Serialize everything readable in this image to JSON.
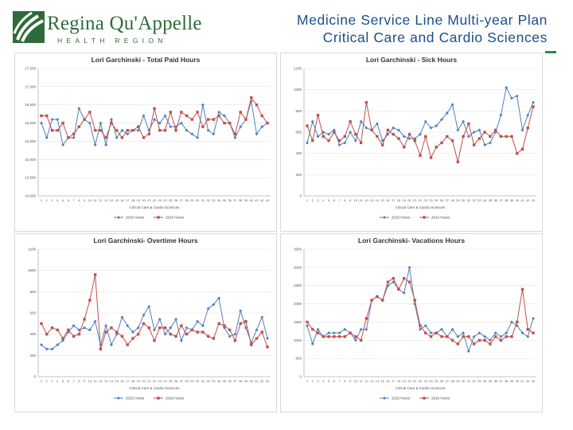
{
  "header": {
    "logo_name": "Regina Qu'Appelle",
    "logo_subtitle": "HEALTH REGION",
    "title_line1": "Medicine Service Line Multi-year Plan",
    "title_line2": "Critical Care and Cardio Sciences",
    "colors": {
      "brand_green": "#2f6b3a",
      "title_blue": "#1a4e8c"
    }
  },
  "chart_data": [
    {
      "type": "line",
      "title": "Lori Garchinski - Total Paid Hours",
      "xlabel": "Critical Care & Cardio Sciences",
      "ylabel": "",
      "ylim": [
        14000,
        17500
      ],
      "yticks": [
        "14,000",
        "14,500",
        "15,000",
        "15,500",
        "16,000",
        "16,500",
        "17,000",
        "17,500"
      ],
      "categories": [
        "1",
        "2",
        "3",
        "4",
        "5",
        "6",
        "7",
        "8",
        "9",
        "10",
        "11",
        "12",
        "13",
        "14",
        "15",
        "16",
        "17",
        "18",
        "19",
        "20",
        "21",
        "22",
        "23",
        "24",
        "25",
        "26",
        "27",
        "28",
        "29",
        "30",
        "31",
        "32",
        "33",
        "34",
        "35",
        "36",
        "37",
        "38",
        "39",
        "40",
        "41",
        "42",
        "43"
      ],
      "series": [
        {
          "name": "2015 Hours",
          "color": "#4f81bd",
          "values": [
            16000,
            15600,
            16100,
            16100,
            15400,
            15600,
            15600,
            16400,
            16100,
            16000,
            15400,
            16000,
            15400,
            16100,
            15600,
            15800,
            15700,
            15800,
            15800,
            16200,
            15800,
            16100,
            16000,
            16200,
            15900,
            15900,
            16000,
            15800,
            15700,
            15600,
            16500,
            15800,
            15700,
            16300,
            16200,
            16000,
            15600,
            15900,
            16100,
            16600,
            15700,
            15900,
            16000
          ]
        },
        {
          "name": "2016 Hours",
          "color": "#c0504d",
          "values": [
            16200,
            16200,
            15800,
            15800,
            16000,
            15600,
            15700,
            15900,
            16100,
            16300,
            15800,
            15800,
            15600,
            16000,
            15800,
            15600,
            15800,
            15800,
            15900,
            15600,
            15700,
            16400,
            15800,
            15800,
            16300,
            15800,
            16300,
            16200,
            16100,
            16300,
            15900,
            16100,
            16100,
            16200,
            16000,
            16000,
            15700,
            16300,
            16100,
            16700,
            16500,
            16200,
            16000
          ]
        }
      ],
      "legend": "bottom"
    },
    {
      "type": "line",
      "title": "Lori Garchinski - Sick Hours",
      "xlabel": "Critical Care & Cardio Sciences",
      "ylabel": "",
      "ylim": [
        0,
        1200
      ],
      "yticks": [
        "0",
        "200",
        "400",
        "600",
        "800",
        "1000",
        "1200"
      ],
      "categories": [
        "1",
        "2",
        "3",
        "4",
        "5",
        "6",
        "7",
        "8",
        "9",
        "10",
        "11",
        "12",
        "13",
        "14",
        "15",
        "16",
        "17",
        "18",
        "19",
        "20",
        "21",
        "22",
        "23",
        "24",
        "25",
        "26",
        "27",
        "28",
        "29",
        "30",
        "31",
        "32",
        "33",
        "34",
        "35",
        "36",
        "37",
        "38",
        "39",
        "40",
        "41",
        "42",
        "43"
      ],
      "series": [
        {
          "name": "2015 Hours",
          "color": "#4f81bd",
          "values": [
            500,
            700,
            560,
            600,
            580,
            620,
            480,
            500,
            600,
            520,
            700,
            640,
            620,
            680,
            520,
            580,
            640,
            620,
            560,
            540,
            540,
            580,
            700,
            640,
            660,
            720,
            780,
            860,
            620,
            700,
            560,
            600,
            620,
            480,
            500,
            600,
            760,
            1020,
            920,
            940,
            620,
            760,
            880
          ]
        },
        {
          "name": "2016 Hours",
          "color": "#c0504d",
          "values": [
            660,
            520,
            760,
            560,
            520,
            600,
            520,
            560,
            700,
            580,
            500,
            880,
            620,
            560,
            480,
            620,
            580,
            540,
            460,
            580,
            520,
            380,
            560,
            360,
            460,
            500,
            560,
            520,
            320,
            560,
            680,
            480,
            540,
            600,
            560,
            620,
            560,
            560,
            560,
            400,
            440,
            640,
            840
          ]
        }
      ],
      "legend": "bottom"
    },
    {
      "type": "line",
      "title": "Lori Garchinski- Overtime Hours",
      "xlabel": "Critical Care & Cardio Sciences",
      "ylabel": "",
      "ylim": [
        0,
        1200
      ],
      "yticks": [
        "0",
        "200",
        "400",
        "600",
        "800",
        "1000",
        "1200"
      ],
      "categories": [
        "1",
        "2",
        "3",
        "4",
        "5",
        "6",
        "7",
        "8",
        "9",
        "10",
        "11",
        "12",
        "13",
        "14",
        "15",
        "16",
        "17",
        "18",
        "19",
        "20",
        "21",
        "22",
        "23",
        "24",
        "25",
        "26",
        "27",
        "28",
        "29",
        "30",
        "31",
        "32",
        "33",
        "34",
        "35",
        "36",
        "37",
        "38",
        "39",
        "40",
        "41",
        "42",
        "43"
      ],
      "series": [
        {
          "name": "2015 Hours",
          "color": "#4f81bd",
          "values": [
            300,
            260,
            260,
            300,
            340,
            420,
            480,
            440,
            460,
            440,
            520,
            300,
            480,
            300,
            400,
            560,
            480,
            420,
            460,
            580,
            660,
            440,
            540,
            400,
            460,
            540,
            340,
            460,
            440,
            520,
            480,
            640,
            680,
            740,
            460,
            380,
            400,
            620,
            460,
            320,
            440,
            560,
            360
          ]
        },
        {
          "name": "2016 Hours",
          "color": "#c0504d",
          "values": [
            500,
            400,
            460,
            440,
            360,
            440,
            380,
            400,
            540,
            720,
            960,
            260,
            420,
            460,
            420,
            380,
            300,
            360,
            400,
            500,
            460,
            340,
            460,
            460,
            400,
            380,
            480,
            400,
            440,
            420,
            420,
            380,
            360,
            500,
            480,
            440,
            340,
            500,
            520,
            300,
            360,
            420,
            280
          ]
        }
      ],
      "legend": "bottom"
    },
    {
      "type": "line",
      "title": "Lori Garchinski- Vacations Hours",
      "xlabel": "Critical Care & Cardio Sciences",
      "ylabel": "",
      "ylim": [
        0,
        3500
      ],
      "yticks": [
        "0",
        "500",
        "1000",
        "1500",
        "2000",
        "2500",
        "3000",
        "3500"
      ],
      "categories": [
        "1",
        "2",
        "3",
        "4",
        "5",
        "6",
        "7",
        "8",
        "9",
        "10",
        "11",
        "12",
        "13",
        "14",
        "15",
        "16",
        "17",
        "18",
        "19",
        "20",
        "21",
        "22",
        "23",
        "24",
        "25",
        "26",
        "27",
        "28",
        "29",
        "30",
        "31",
        "32",
        "33",
        "34",
        "35",
        "36",
        "37",
        "38",
        "39",
        "40",
        "41",
        "42",
        "43"
      ],
      "series": [
        {
          "name": "2015 Hours",
          "color": "#4f81bd",
          "values": [
            1400,
            900,
            1300,
            1100,
            1200,
            1200,
            1200,
            1300,
            1200,
            1000,
            1300,
            1300,
            2100,
            2200,
            2100,
            2500,
            2600,
            2400,
            2300,
            3000,
            2000,
            1300,
            1400,
            1200,
            1200,
            1300,
            1100,
            1300,
            1100,
            1200,
            700,
            1100,
            1200,
            1100,
            1000,
            1200,
            1100,
            1200,
            1500,
            1400,
            1200,
            1100,
            1600
          ]
        },
        {
          "name": "2016 Hours",
          "color": "#c0504d",
          "values": [
            1500,
            1300,
            1200,
            1100,
            1100,
            1100,
            1100,
            1100,
            1200,
            1100,
            1000,
            1600,
            2100,
            2200,
            2100,
            2600,
            2700,
            2400,
            2700,
            2600,
            2100,
            1400,
            1200,
            1100,
            1200,
            1100,
            1100,
            1000,
            900,
            1100,
            1100,
            900,
            1000,
            1000,
            900,
            1100,
            1000,
            1100,
            1100,
            1500,
            2400,
            1300,
            1200
          ]
        }
      ],
      "legend": "bottom"
    }
  ]
}
